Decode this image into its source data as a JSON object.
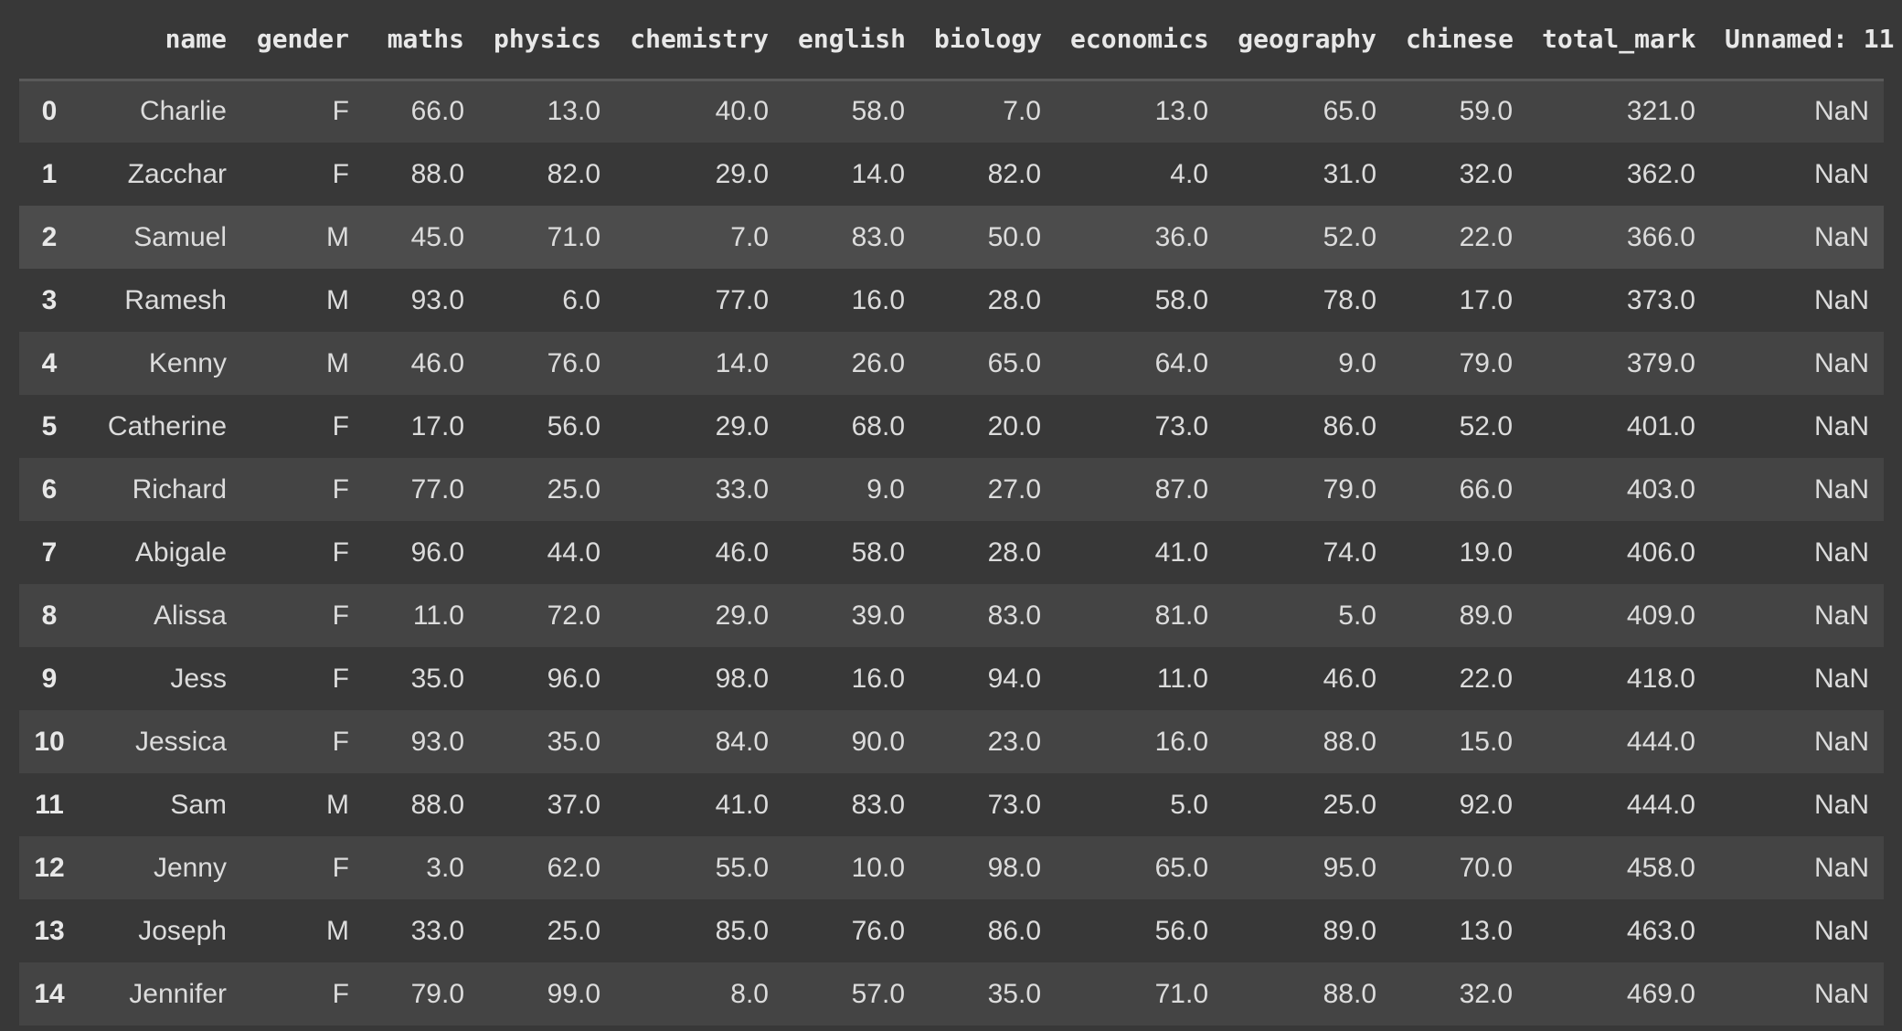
{
  "table": {
    "columns": [
      "",
      "name",
      "gender",
      "maths",
      "physics",
      "chemistry",
      "english",
      "biology",
      "economics",
      "geography",
      "chinese",
      "total_mark",
      "Unnamed: 11"
    ],
    "rows": [
      [
        "0",
        "Charlie",
        "F",
        "66.0",
        "13.0",
        "40.0",
        "58.0",
        "7.0",
        "13.0",
        "65.0",
        "59.0",
        "321.0",
        "NaN"
      ],
      [
        "1",
        "Zacchar",
        "F",
        "88.0",
        "82.0",
        "29.0",
        "14.0",
        "82.0",
        "4.0",
        "31.0",
        "32.0",
        "362.0",
        "NaN"
      ],
      [
        "2",
        "Samuel",
        "M",
        "45.0",
        "71.0",
        "7.0",
        "83.0",
        "50.0",
        "36.0",
        "52.0",
        "22.0",
        "366.0",
        "NaN"
      ],
      [
        "3",
        "Ramesh",
        "M",
        "93.0",
        "6.0",
        "77.0",
        "16.0",
        "28.0",
        "58.0",
        "78.0",
        "17.0",
        "373.0",
        "NaN"
      ],
      [
        "4",
        "Kenny",
        "M",
        "46.0",
        "76.0",
        "14.0",
        "26.0",
        "65.0",
        "64.0",
        "9.0",
        "79.0",
        "379.0",
        "NaN"
      ],
      [
        "5",
        "Catherine",
        "F",
        "17.0",
        "56.0",
        "29.0",
        "68.0",
        "20.0",
        "73.0",
        "86.0",
        "52.0",
        "401.0",
        "NaN"
      ],
      [
        "6",
        "Richard",
        "F",
        "77.0",
        "25.0",
        "33.0",
        "9.0",
        "27.0",
        "87.0",
        "79.0",
        "66.0",
        "403.0",
        "NaN"
      ],
      [
        "7",
        "Abigale",
        "F",
        "96.0",
        "44.0",
        "46.0",
        "58.0",
        "28.0",
        "41.0",
        "74.0",
        "19.0",
        "406.0",
        "NaN"
      ],
      [
        "8",
        "Alissa",
        "F",
        "11.0",
        "72.0",
        "29.0",
        "39.0",
        "83.0",
        "81.0",
        "5.0",
        "89.0",
        "409.0",
        "NaN"
      ],
      [
        "9",
        "Jess",
        "F",
        "35.0",
        "96.0",
        "98.0",
        "16.0",
        "94.0",
        "11.0",
        "46.0",
        "22.0",
        "418.0",
        "NaN"
      ],
      [
        "10",
        "Jessica",
        "F",
        "93.0",
        "35.0",
        "84.0",
        "90.0",
        "23.0",
        "16.0",
        "88.0",
        "15.0",
        "444.0",
        "NaN"
      ],
      [
        "11",
        "Sam",
        "M",
        "88.0",
        "37.0",
        "41.0",
        "83.0",
        "73.0",
        "5.0",
        "25.0",
        "92.0",
        "444.0",
        "NaN"
      ],
      [
        "12",
        "Jenny",
        "F",
        "3.0",
        "62.0",
        "55.0",
        "10.0",
        "98.0",
        "65.0",
        "95.0",
        "70.0",
        "458.0",
        "NaN"
      ],
      [
        "13",
        "Joseph",
        "M",
        "33.0",
        "25.0",
        "85.0",
        "76.0",
        "86.0",
        "56.0",
        "89.0",
        "13.0",
        "463.0",
        "NaN"
      ],
      [
        "14",
        "Jennifer",
        "F",
        "79.0",
        "99.0",
        "8.0",
        "57.0",
        "35.0",
        "71.0",
        "88.0",
        "32.0",
        "469.0",
        "NaN"
      ]
    ],
    "hover_row": 2
  },
  "colors": {
    "background": "#383838",
    "row_odd": "#444444",
    "row_hover": "#4c4c4c",
    "text": "#dcdcdc"
  }
}
